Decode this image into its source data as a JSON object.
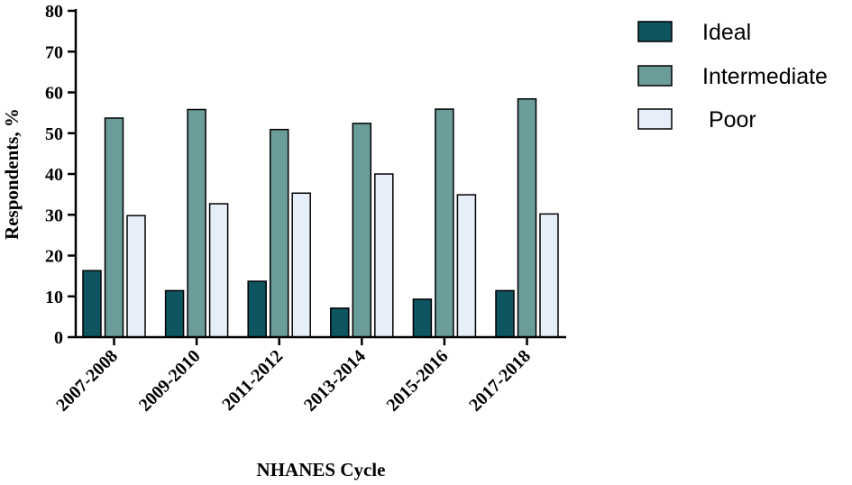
{
  "chart_data": {
    "type": "bar",
    "title": "",
    "xlabel": "NHANES Cycle",
    "ylabel": "Respondents, %",
    "ylim": [
      0,
      80
    ],
    "yticks": [
      0,
      10,
      20,
      30,
      40,
      50,
      60,
      70,
      80
    ],
    "grid": false,
    "legend_position": "top-right",
    "categories": [
      "2007-2008",
      "2009-2010",
      "2011-2012",
      "2013-2014",
      "2015-2016",
      "2017-2018"
    ],
    "series": [
      {
        "name": "Ideal",
        "legend_label": "Ideal",
        "color": "#0d5560",
        "values": [
          16.3,
          11.4,
          13.7,
          7.1,
          9.3,
          11.4
        ]
      },
      {
        "name": "Intermediate",
        "legend_label": "Intermediate",
        "color": "#6a9c9a",
        "values": [
          53.7,
          55.8,
          50.9,
          52.4,
          55.9,
          58.4
        ]
      },
      {
        "name": "Poor",
        "legend_label": " Poor",
        "color": "#e6eef9",
        "values": [
          29.8,
          32.7,
          35.3,
          40.0,
          34.9,
          30.2
        ]
      }
    ]
  }
}
